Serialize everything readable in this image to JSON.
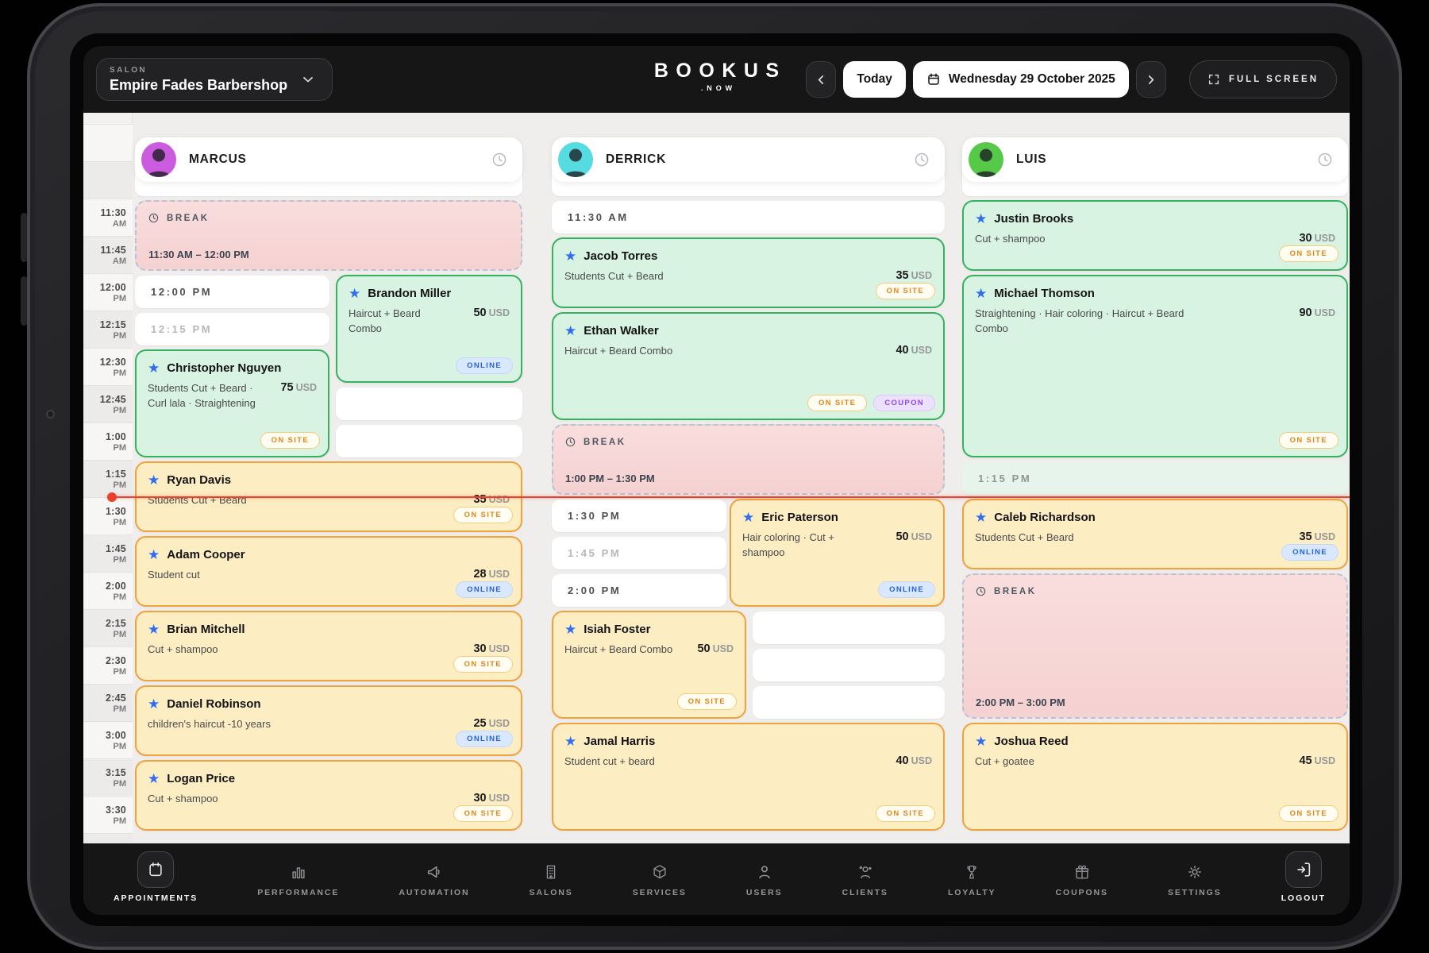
{
  "header": {
    "salon_label": "SALON",
    "salon_name": "Empire Fades Barbershop",
    "logo_main": "BOOKUS",
    "logo_sub": ".NOW",
    "today_label": "Today",
    "date_label": "Wednesday 29 October 2025",
    "fullscreen_label": "FULL SCREEN"
  },
  "colors": {
    "confirmed_card": "#d8f3e1",
    "confirmed_border": "#35b25d",
    "pending_card": "#fdedc2",
    "pending_border": "#f0a23c",
    "break_card": "#f8d9d9",
    "current_time_line": "#e8422c",
    "star_icon": "#2f6ef2",
    "onsite_badge_text": "#e2861c",
    "online_badge_text": "#2561e8",
    "coupon_badge_text": "#8f45f0"
  },
  "calendar": {
    "current_time": "1:30 PM",
    "time_labels": [
      "11:30 AM",
      "11:45 AM",
      "12:00 PM",
      "12:15 PM",
      "12:30 PM",
      "12:45 PM",
      "1:00 PM",
      "1:15 PM",
      "1:30 PM",
      "1:45 PM",
      "2:00 PM",
      "2:15 PM",
      "2:30 PM",
      "2:45 PM",
      "3:00 PM",
      "3:15 PM",
      "3:30 PM"
    ],
    "columns": [
      {
        "id": "marcus",
        "staff": {
          "name": "MARCUS",
          "avatar_color": "#cb5ce0",
          "icon": "clock-icon"
        },
        "events": [
          {
            "kind": "slot",
            "label": "",
            "start": "11:15",
            "end": "11:30",
            "lane": "full"
          },
          {
            "kind": "break",
            "title": "BREAK",
            "time_range": "11:30 AM – 12:00 PM",
            "start": "11:30",
            "end": "12:00",
            "lane": "full"
          },
          {
            "kind": "slot",
            "label": "12:00 PM",
            "start": "12:00",
            "end": "12:15",
            "lane": "left"
          },
          {
            "kind": "slot",
            "label": "12:15 PM",
            "muted": true,
            "start": "12:15",
            "end": "12:30",
            "lane": "left"
          },
          {
            "kind": "appt",
            "style": "green",
            "name": "Brandon Miller",
            "services": "Haircut + Beard Combo",
            "price": "50",
            "currency": "USD",
            "badges": [
              "ONLINE"
            ],
            "start": "12:00",
            "end": "12:45",
            "lane": "right"
          },
          {
            "kind": "appt",
            "style": "green",
            "name": "Christopher Nguyen",
            "services": "Students Cut + Beard · Curl lala · Straightening",
            "price": "75",
            "currency": "USD",
            "badges": [
              "ON SITE"
            ],
            "start": "12:30",
            "end": "13:15",
            "lane": "left"
          },
          {
            "kind": "slot",
            "label": "",
            "start": "12:45",
            "end": "13:00",
            "lane": "right"
          },
          {
            "kind": "slot",
            "label": "",
            "start": "13:00",
            "end": "13:15",
            "lane": "right"
          },
          {
            "kind": "appt",
            "style": "yellow",
            "name": "Ryan Davis",
            "services": "Students Cut + Beard",
            "price": "35",
            "currency": "USD",
            "badges": [
              "ON SITE"
            ],
            "start": "13:15",
            "end": "13:45",
            "lane": "full"
          },
          {
            "kind": "appt",
            "style": "yellow",
            "name": "Adam Cooper",
            "services": "Student cut",
            "price": "28",
            "currency": "USD",
            "badges": [
              "ONLINE"
            ],
            "start": "13:45",
            "end": "14:15",
            "lane": "full"
          },
          {
            "kind": "appt",
            "style": "yellow",
            "name": "Brian Mitchell",
            "services": "Cut + shampoo",
            "price": "30",
            "currency": "USD",
            "badges": [
              "ON SITE"
            ],
            "start": "14:15",
            "end": "14:45",
            "lane": "full"
          },
          {
            "kind": "appt",
            "style": "yellow",
            "name": "Daniel Robinson",
            "services": "children's haircut -10 years",
            "price": "25",
            "currency": "USD",
            "badges": [
              "ONLINE"
            ],
            "start": "14:45",
            "end": "15:15",
            "lane": "full"
          },
          {
            "kind": "appt",
            "style": "yellow",
            "name": "Logan Price",
            "services": "Cut + shampoo",
            "price": "30",
            "currency": "USD",
            "badges": [
              "ON SITE"
            ],
            "start": "15:15",
            "end": "15:45",
            "lane": "full"
          }
        ]
      },
      {
        "id": "derrick",
        "staff": {
          "name": "DERRICK",
          "avatar_color": "#55dbe0",
          "icon": "clock-icon"
        },
        "events": [
          {
            "kind": "slot",
            "label": "",
            "start": "11:15",
            "end": "11:30",
            "lane": "full"
          },
          {
            "kind": "slot",
            "label": "11:30 AM",
            "start": "11:30",
            "end": "11:45",
            "lane": "full"
          },
          {
            "kind": "appt",
            "style": "green",
            "name": "Jacob Torres",
            "services": "Students Cut + Beard",
            "price": "35",
            "currency": "USD",
            "badges": [
              "ON SITE"
            ],
            "start": "11:45",
            "end": "12:15",
            "lane": "full"
          },
          {
            "kind": "appt",
            "style": "green",
            "name": "Ethan Walker",
            "services": "Haircut + Beard Combo",
            "price": "40",
            "currency": "USD",
            "badges": [
              "ON SITE",
              "COUPON"
            ],
            "start": "12:15",
            "end": "13:00",
            "lane": "full"
          },
          {
            "kind": "break",
            "title": "BREAK",
            "time_range": "1:00 PM – 1:30 PM",
            "start": "13:00",
            "end": "13:30",
            "lane": "full"
          },
          {
            "kind": "slot",
            "label": "1:30 PM",
            "start": "13:30",
            "end": "13:45",
            "lane": "leftNarrow"
          },
          {
            "kind": "slot",
            "label": "1:45 PM",
            "muted": true,
            "start": "13:45",
            "end": "14:00",
            "lane": "leftNarrow"
          },
          {
            "kind": "slot",
            "label": "2:00 PM",
            "start": "14:00",
            "end": "14:15",
            "lane": "leftNarrow"
          },
          {
            "kind": "appt",
            "style": "yellow",
            "name": "Eric Paterson",
            "services": "Hair coloring · Cut + shampoo",
            "price": "50",
            "currency": "USD",
            "badges": [
              "ONLINE"
            ],
            "start": "13:30",
            "end": "14:15",
            "lane": "right"
          },
          {
            "kind": "appt",
            "style": "yellow",
            "name": "Isiah Foster",
            "services": "Haircut + Beard Combo",
            "price": "50",
            "currency": "USD",
            "badges": [
              "ON SITE"
            ],
            "start": "14:15",
            "end": "15:00",
            "lane": "left"
          },
          {
            "kind": "slot",
            "label": "",
            "start": "14:15",
            "end": "14:30",
            "lane": "rightNarrow"
          },
          {
            "kind": "slot",
            "label": "",
            "start": "14:30",
            "end": "14:45",
            "lane": "rightNarrow"
          },
          {
            "kind": "slot",
            "label": "",
            "start": "14:45",
            "end": "15:00",
            "lane": "rightNarrow"
          },
          {
            "kind": "appt",
            "style": "yellow",
            "name": "Jamal Harris",
            "services": "Student cut + beard",
            "price": "40",
            "currency": "USD",
            "badges": [
              "ON SITE"
            ],
            "start": "15:00",
            "end": "15:45",
            "lane": "full"
          }
        ]
      },
      {
        "id": "luis",
        "staff": {
          "name": "LUIS",
          "avatar_color": "#56c948",
          "icon": "clock-icon"
        },
        "events": [
          {
            "kind": "slot",
            "label": "",
            "start": "11:15",
            "end": "11:30",
            "lane": "full"
          },
          {
            "kind": "appt",
            "style": "green",
            "name": "Justin Brooks",
            "services": "Cut + shampoo",
            "price": "30",
            "currency": "USD",
            "badges": [
              "ON SITE"
            ],
            "start": "11:30",
            "end": "12:00",
            "lane": "full"
          },
          {
            "kind": "appt",
            "style": "green",
            "name": "Michael Thomson",
            "services": "Straightening · Hair coloring · Haircut + Beard Combo",
            "price": "90",
            "currency": "USD",
            "badges": [
              "ON SITE"
            ],
            "start": "12:00",
            "end": "13:15",
            "lane": "full"
          },
          {
            "kind": "slot",
            "label": "1:15 PM",
            "tint": true,
            "start": "13:15",
            "end": "13:30",
            "lane": "full"
          },
          {
            "kind": "appt",
            "style": "yellow",
            "name": "Caleb Richardson",
            "services": "Students Cut + Beard",
            "price": "35",
            "currency": "USD",
            "badges": [
              "ONLINE"
            ],
            "start": "13:30",
            "end": "14:00",
            "lane": "full"
          },
          {
            "kind": "break",
            "title": "BREAK",
            "time_range": "2:00 PM – 3:00 PM",
            "start": "14:00",
            "end": "15:00",
            "lane": "full"
          },
          {
            "kind": "appt",
            "style": "yellow",
            "name": "Joshua Reed",
            "services": "Cut + goatee",
            "price": "45",
            "currency": "USD",
            "badges": [
              "ON SITE"
            ],
            "start": "15:00",
            "end": "15:45",
            "lane": "full"
          }
        ]
      }
    ]
  },
  "nav": {
    "items": [
      {
        "label": "APPOINTMENTS",
        "icon": "calendar-icon",
        "active": true,
        "boxed": true
      },
      {
        "label": "PERFORMANCE",
        "icon": "bar-chart-icon",
        "active": false,
        "boxed": false
      },
      {
        "label": "AUTOMATION",
        "icon": "megaphone-icon",
        "active": false,
        "boxed": false
      },
      {
        "label": "SALONS",
        "icon": "building-icon",
        "active": false,
        "boxed": false
      },
      {
        "label": "SERVICES",
        "icon": "cube-icon",
        "active": false,
        "boxed": false
      },
      {
        "label": "USERS",
        "icon": "user-icon",
        "active": false,
        "boxed": false
      },
      {
        "label": "CLIENTS",
        "icon": "clients-icon",
        "active": false,
        "boxed": false
      },
      {
        "label": "LOYALTY",
        "icon": "trophy-icon",
        "active": false,
        "boxed": false
      },
      {
        "label": "COUPONS",
        "icon": "gift-icon",
        "active": false,
        "boxed": false
      },
      {
        "label": "SETTINGS",
        "icon": "gear-icon",
        "active": false,
        "boxed": false
      },
      {
        "label": "LOGOUT",
        "icon": "logout-icon",
        "active": true,
        "boxed": true
      }
    ]
  }
}
